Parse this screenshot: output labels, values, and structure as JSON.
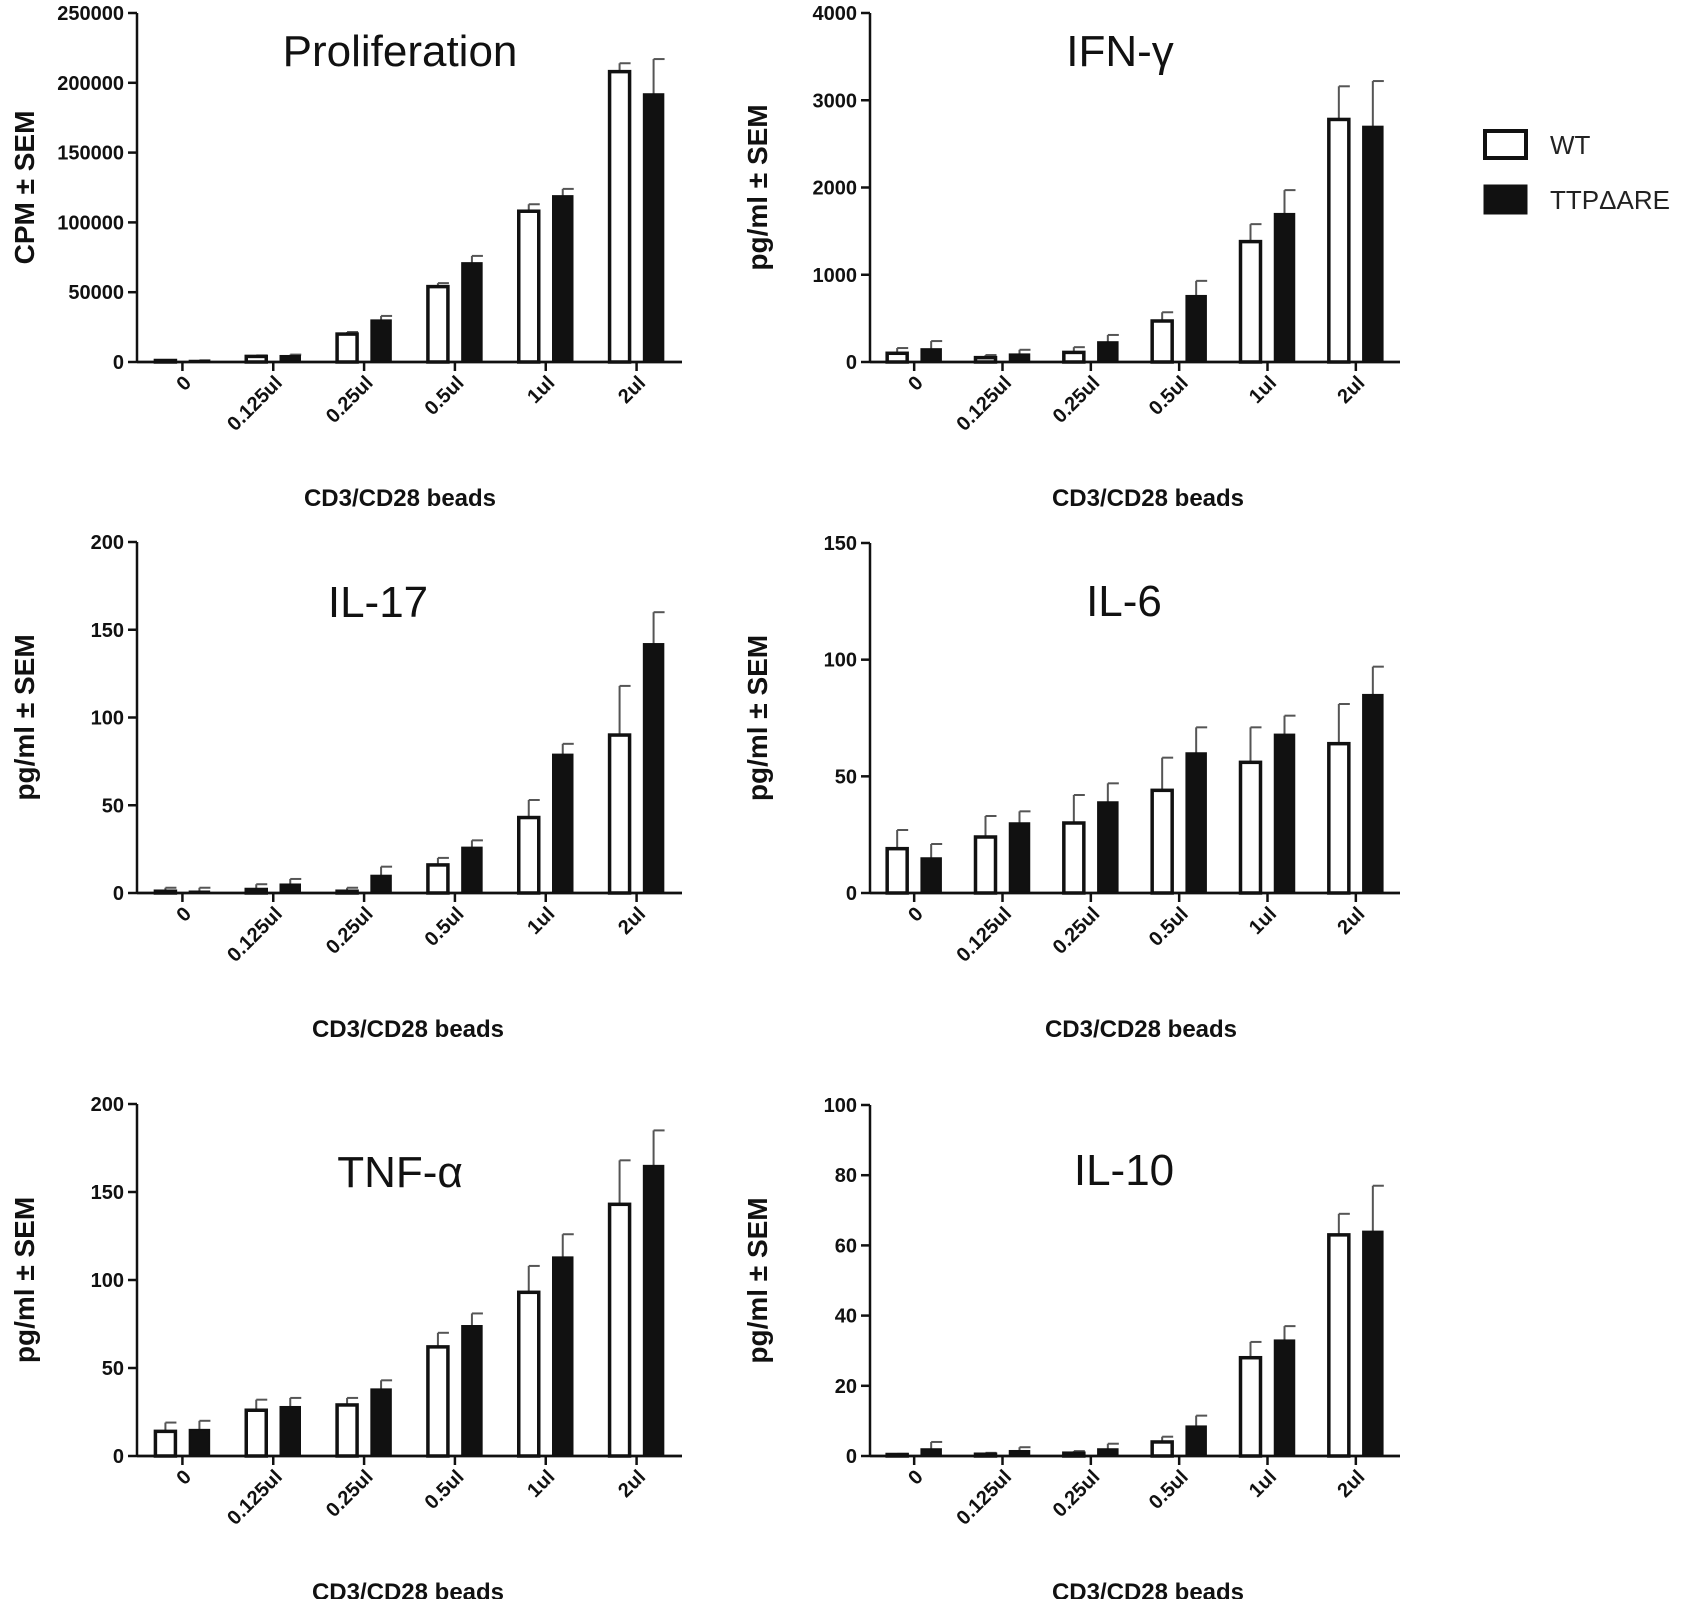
{
  "legend": [
    {
      "name": "WT",
      "fill": "#ffffff"
    },
    {
      "name": "TTPΔARE",
      "fill": "#111111"
    }
  ],
  "chart_data": [
    {
      "type": "bar",
      "title": "Proliferation",
      "xlabel": "CD3/CD28 beads",
      "ylabel": "CPM ± SEM",
      "categories": [
        "0",
        "0.125ul",
        "0.25ul",
        "0.5ul",
        "1ul",
        "2ul"
      ],
      "ylim": [
        0,
        250000
      ],
      "yticks": [
        0,
        50000,
        100000,
        150000,
        200000,
        250000
      ],
      "series": [
        {
          "name": "WT",
          "values": [
            600,
            4000,
            20000,
            54000,
            108000,
            208000
          ],
          "errors": [
            200,
            700,
            1500,
            2500,
            5000,
            6000
          ]
        },
        {
          "name": "TTPΔARE",
          "values": [
            900,
            4500,
            30000,
            71000,
            119000,
            192000
          ],
          "errors": [
            300,
            800,
            3000,
            5000,
            5000,
            25000
          ]
        }
      ]
    },
    {
      "type": "bar",
      "title": "IFN-γ",
      "xlabel": "CD3/CD28 beads",
      "ylabel": "pg/ml ± SEM",
      "categories": [
        "0",
        "0.125ul",
        "0.25ul",
        "0.5ul",
        "1ul",
        "2ul"
      ],
      "ylim": [
        0,
        4000
      ],
      "yticks": [
        0,
        1000,
        2000,
        3000,
        4000
      ],
      "series": [
        {
          "name": "WT",
          "values": [
            100,
            50,
            110,
            470,
            1380,
            2780
          ],
          "errors": [
            60,
            30,
            60,
            100,
            200,
            380
          ]
        },
        {
          "name": "TTPΔARE",
          "values": [
            150,
            90,
            230,
            760,
            1700,
            2700
          ],
          "errors": [
            90,
            50,
            80,
            170,
            270,
            520
          ]
        }
      ]
    },
    {
      "type": "bar",
      "title": "IL-17",
      "xlabel": "CD3/CD28 beads",
      "ylabel": "pg/ml ± SEM",
      "categories": [
        "0",
        "0.125ul",
        "0.25ul",
        "0.5ul",
        "1ul",
        "2ul"
      ],
      "ylim": [
        0,
        200
      ],
      "yticks": [
        0,
        50,
        100,
        150,
        200
      ],
      "series": [
        {
          "name": "WT",
          "values": [
            1,
            2,
            1,
            16,
            43,
            90
          ],
          "errors": [
            2,
            3,
            2,
            4,
            10,
            28
          ]
        },
        {
          "name": "TTPΔARE",
          "values": [
            1,
            5,
            10,
            26,
            79,
            142
          ],
          "errors": [
            2,
            3,
            5,
            4,
            6,
            18
          ]
        }
      ]
    },
    {
      "type": "bar",
      "title": "IL-6",
      "xlabel": "CD3/CD28 beads",
      "ylabel": "pg/ml ± SEM",
      "categories": [
        "0",
        "0.125ul",
        "0.25ul",
        "0.5ul",
        "1ul",
        "2ul"
      ],
      "ylim": [
        0,
        150
      ],
      "yticks": [
        0,
        50,
        100,
        150
      ],
      "series": [
        {
          "name": "WT",
          "values": [
            19,
            24,
            30,
            44,
            56,
            64
          ],
          "errors": [
            8,
            9,
            12,
            14,
            15,
            17
          ]
        },
        {
          "name": "TTPΔARE",
          "values": [
            15,
            30,
            39,
            60,
            68,
            85
          ],
          "errors": [
            6,
            5,
            8,
            11,
            8,
            12
          ]
        }
      ]
    },
    {
      "type": "bar",
      "title": "TNF-α",
      "xlabel": "CD3/CD28 beads",
      "ylabel": "pg/ml ± SEM",
      "categories": [
        "0",
        "0.125ul",
        "0.25ul",
        "0.5ul",
        "1ul",
        "2ul"
      ],
      "ylim": [
        0,
        200
      ],
      "yticks": [
        0,
        50,
        100,
        150,
        200
      ],
      "series": [
        {
          "name": "WT",
          "values": [
            14,
            26,
            29,
            62,
            93,
            143
          ],
          "errors": [
            5,
            6,
            4,
            8,
            15,
            25
          ]
        },
        {
          "name": "TTPΔARE",
          "values": [
            15,
            28,
            38,
            74,
            113,
            165
          ],
          "errors": [
            5,
            5,
            5,
            7,
            13,
            20
          ]
        }
      ]
    },
    {
      "type": "bar",
      "title": "IL-10",
      "xlabel": "CD3/CD28 beads",
      "ylabel": "pg/ml ± SEM",
      "categories": [
        "0",
        "0.125ul",
        "0.25ul",
        "0.5ul",
        "1ul",
        "2ul"
      ],
      "ylim": [
        0,
        100
      ],
      "yticks": [
        0,
        20,
        40,
        60,
        80,
        100
      ],
      "series": [
        {
          "name": "WT",
          "values": [
            0.3,
            0.5,
            0.8,
            4,
            28,
            63
          ],
          "errors": [
            0.3,
            0.4,
            0.6,
            1.5,
            4.5,
            6
          ]
        },
        {
          "name": "TTPΔARE",
          "values": [
            2,
            1.5,
            2,
            8.5,
            33,
            64
          ],
          "errors": [
            2,
            1,
            1.5,
            3,
            4,
            13
          ]
        }
      ]
    }
  ]
}
